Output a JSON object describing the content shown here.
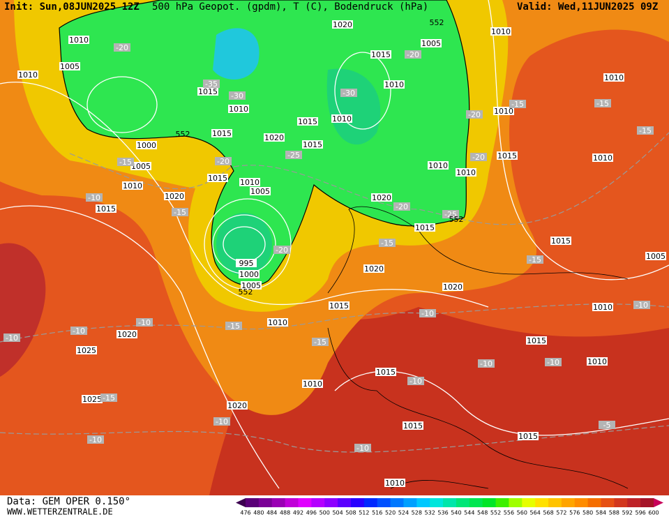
{
  "header": {
    "init": "Init: Sun,08JUN2025 12Z",
    "title": "500 hPa Geopot. (gpdm), T (C), Bodendruck (hPa)",
    "valid": "Valid: Wed,11JUN2025 09Z"
  },
  "footer": {
    "data": "Data: GEM OPER 0.150°",
    "site": "WWW.WETTERZENTRALE.DE"
  },
  "colorbar": {
    "levels": [
      476,
      480,
      484,
      488,
      492,
      496,
      500,
      504,
      508,
      512,
      516,
      520,
      524,
      528,
      532,
      536,
      540,
      544,
      548,
      552,
      556,
      560,
      564,
      568,
      572,
      576,
      580,
      584,
      588,
      592,
      596,
      600
    ],
    "colors": [
      "#3c0050",
      "#5a0078",
      "#7a0096",
      "#9a00b4",
      "#c000d8",
      "#e000ff",
      "#b400ff",
      "#8c00ff",
      "#5a00ff",
      "#2800ff",
      "#0028ff",
      "#0050ff",
      "#0078ff",
      "#00a0ff",
      "#00c8ff",
      "#00e6dc",
      "#00e6aa",
      "#00e678",
      "#00e650",
      "#00e628",
      "#3cf000",
      "#a0ff00",
      "#e6ff00",
      "#ffe100",
      "#ffc300",
      "#ffa500",
      "#ff8c00",
      "#f56e00",
      "#e65014",
      "#d2371e",
      "#be2328",
      "#a51428",
      "#c8005a"
    ]
  },
  "map": {
    "isobar_labels": [
      1010,
      1020,
      1010,
      1005,
      1015,
      1010,
      1005,
      1010,
      1010,
      1015,
      1010,
      1015,
      1010,
      1010,
      1015,
      1020,
      1015,
      1000,
      1005,
      1010,
      1015,
      1010,
      1010,
      1010,
      1015,
      1010,
      1005,
      1020,
      1020,
      1015,
      1015,
      1015,
      995,
      1000,
      1005,
      1020,
      1020,
      1005,
      1015,
      1010,
      1010,
      1020,
      1025,
      1015,
      1010,
      1010,
      1015,
      1025,
      1020,
      1015,
      1015,
      1010
    ],
    "temperature_labels": [
      -20,
      -20,
      -35,
      -30,
      -30,
      -15,
      -15,
      -20,
      -15,
      -20,
      -25,
      -15,
      -20,
      -10,
      -15,
      -20,
      -25,
      -15,
      -20,
      -15,
      -10,
      -10,
      -15,
      -10,
      -10,
      -10,
      -15,
      -10,
      -10,
      -10,
      -15,
      -10,
      -10,
      -5,
      -10
    ],
    "geopotential_labels": [
      552,
      552,
      552,
      552
    ]
  }
}
